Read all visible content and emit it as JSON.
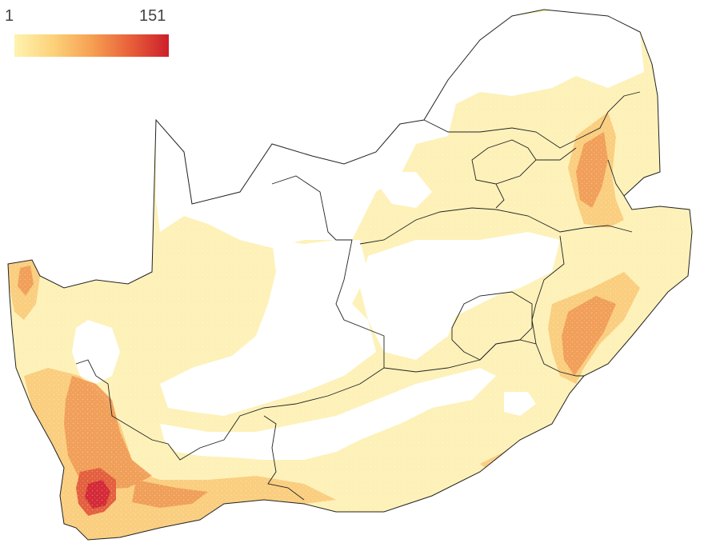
{
  "legend": {
    "min_label": "1",
    "max_label": "151",
    "colors": [
      "#fef3b0",
      "#fcd27a",
      "#f6a052",
      "#e8603a",
      "#cc1f2a"
    ]
  },
  "map": {
    "region": "South Africa",
    "colors": {
      "border": "#222222",
      "light": "#fdf1b8",
      "mid": "#f9c874",
      "orange": "#f09a55",
      "hot": "#e3603f",
      "peak": "#d42a38"
    }
  }
}
